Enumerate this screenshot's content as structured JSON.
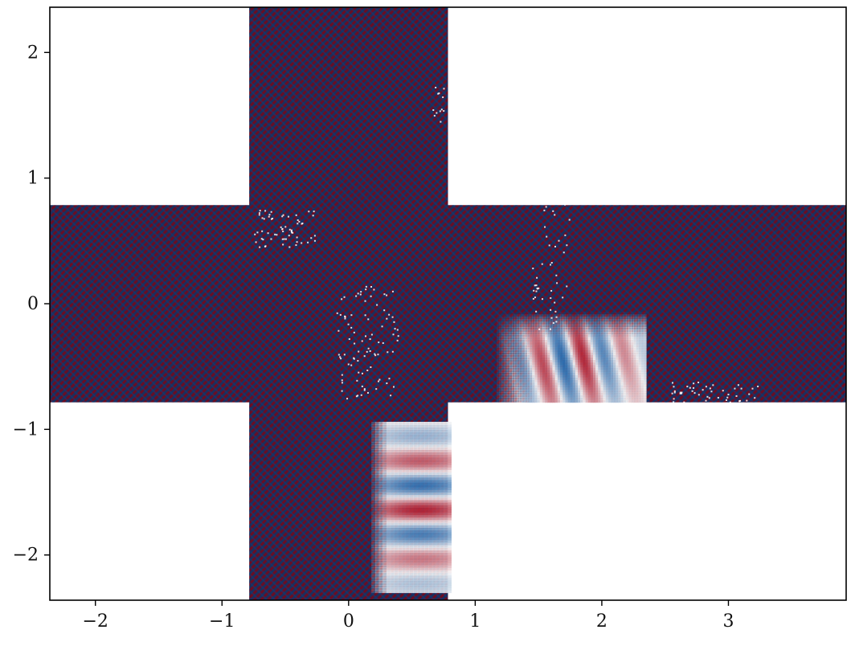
{
  "chart_data": {
    "type": "heatmap",
    "title": "",
    "xlabel": "",
    "ylabel": "",
    "xlim": [
      -2.36,
      3.93
    ],
    "ylim": [
      -2.36,
      2.36
    ],
    "x_ticks": [
      {
        "value": -2,
        "label": "−2"
      },
      {
        "value": -1,
        "label": "−1"
      },
      {
        "value": 0,
        "label": "0"
      },
      {
        "value": 1,
        "label": "1"
      },
      {
        "value": 2,
        "label": "2"
      },
      {
        "value": 3,
        "label": "3"
      }
    ],
    "y_ticks": [
      {
        "value": 2,
        "label": "2"
      },
      {
        "value": 1,
        "label": "1"
      },
      {
        "value": 0,
        "label": "0"
      },
      {
        "value": -1,
        "label": "−1"
      },
      {
        "value": -2,
        "label": "−2"
      }
    ],
    "grid": false,
    "colormap": "diverging red-white-blue",
    "colors": {
      "negative": "#67001f",
      "mid": "#f7f7f7",
      "positive": "#053061",
      "blank": "#ffffff",
      "axis": "#000000"
    },
    "domain_regions": [
      {
        "name": "vertical-strip",
        "x": [
          -0.785,
          0.785
        ],
        "y": [
          -2.36,
          2.36
        ]
      },
      {
        "name": "horizontal-strip",
        "x": [
          -2.36,
          3.93
        ],
        "y": [
          -0.785,
          0.785
        ]
      }
    ],
    "smooth_regions": [
      {
        "name": "lower-wave-region",
        "x_center": 0.45,
        "y_center": -1.55,
        "wavelength": 0.4,
        "direction": "vertical"
      },
      {
        "name": "right-wave-region",
        "x_center": 1.75,
        "y_center": -0.45,
        "wavelength": 0.35,
        "direction": "horizontal"
      }
    ]
  }
}
